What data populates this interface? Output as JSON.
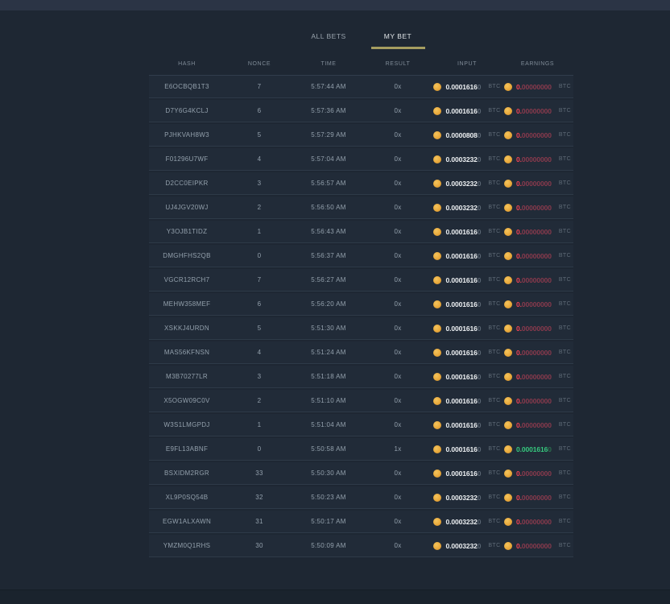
{
  "colors": {
    "accent_gold": "#a59d60",
    "win_green": "#36c97e",
    "lose_red": "#ef4256",
    "coin_gold": "#e9a93c"
  },
  "tabs": [
    {
      "label": "ALL BETS",
      "active": false
    },
    {
      "label": "MY BET",
      "active": true
    }
  ],
  "columns": [
    "HASH",
    "NONCE",
    "TIME",
    "RESULT",
    "INPUT",
    "EARNINGS"
  ],
  "currency": "BTC",
  "rows": [
    {
      "hash": "E6OCBQB1T3",
      "nonce": "7",
      "time": "5:57:44 AM",
      "result": "0x",
      "input_main": "0.0001616",
      "input_dim": "0",
      "earn_main": "0.",
      "earn_dim": "00000000",
      "outcome": "lose"
    },
    {
      "hash": "D7Y6G4KCLJ",
      "nonce": "6",
      "time": "5:57:36 AM",
      "result": "0x",
      "input_main": "0.0001616",
      "input_dim": "0",
      "earn_main": "0.",
      "earn_dim": "00000000",
      "outcome": "lose"
    },
    {
      "hash": "PJHKVAH8W3",
      "nonce": "5",
      "time": "5:57:29 AM",
      "result": "0x",
      "input_main": "0.0000808",
      "input_dim": "0",
      "earn_main": "0.",
      "earn_dim": "00000000",
      "outcome": "lose"
    },
    {
      "hash": "F01296U7WF",
      "nonce": "4",
      "time": "5:57:04 AM",
      "result": "0x",
      "input_main": "0.0003232",
      "input_dim": "0",
      "earn_main": "0.",
      "earn_dim": "00000000",
      "outcome": "lose"
    },
    {
      "hash": "D2CC0EIPKR",
      "nonce": "3",
      "time": "5:56:57 AM",
      "result": "0x",
      "input_main": "0.0003232",
      "input_dim": "0",
      "earn_main": "0.",
      "earn_dim": "00000000",
      "outcome": "lose"
    },
    {
      "hash": "UJ4JGV20WJ",
      "nonce": "2",
      "time": "5:56:50 AM",
      "result": "0x",
      "input_main": "0.0003232",
      "input_dim": "0",
      "earn_main": "0.",
      "earn_dim": "00000000",
      "outcome": "lose"
    },
    {
      "hash": "Y3OJB1TIDZ",
      "nonce": "1",
      "time": "5:56:43 AM",
      "result": "0x",
      "input_main": "0.0001616",
      "input_dim": "0",
      "earn_main": "0.",
      "earn_dim": "00000000",
      "outcome": "lose"
    },
    {
      "hash": "DMGHFHS2QB",
      "nonce": "0",
      "time": "5:56:37 AM",
      "result": "0x",
      "input_main": "0.0001616",
      "input_dim": "0",
      "earn_main": "0.",
      "earn_dim": "00000000",
      "outcome": "lose"
    },
    {
      "hash": "VGCR12RCH7",
      "nonce": "7",
      "time": "5:56:27 AM",
      "result": "0x",
      "input_main": "0.0001616",
      "input_dim": "0",
      "earn_main": "0.",
      "earn_dim": "00000000",
      "outcome": "lose"
    },
    {
      "hash": "MEHW358MEF",
      "nonce": "6",
      "time": "5:56:20 AM",
      "result": "0x",
      "input_main": "0.0001616",
      "input_dim": "0",
      "earn_main": "0.",
      "earn_dim": "00000000",
      "outcome": "lose"
    },
    {
      "hash": "XSKKJ4URDN",
      "nonce": "5",
      "time": "5:51:30 AM",
      "result": "0x",
      "input_main": "0.0001616",
      "input_dim": "0",
      "earn_main": "0.",
      "earn_dim": "00000000",
      "outcome": "lose"
    },
    {
      "hash": "MAS56KFNSN",
      "nonce": "4",
      "time": "5:51:24 AM",
      "result": "0x",
      "input_main": "0.0001616",
      "input_dim": "0",
      "earn_main": "0.",
      "earn_dim": "00000000",
      "outcome": "lose"
    },
    {
      "hash": "M3B70277LR",
      "nonce": "3",
      "time": "5:51:18 AM",
      "result": "0x",
      "input_main": "0.0001616",
      "input_dim": "0",
      "earn_main": "0.",
      "earn_dim": "00000000",
      "outcome": "lose"
    },
    {
      "hash": "X5OGW09C0V",
      "nonce": "2",
      "time": "5:51:10 AM",
      "result": "0x",
      "input_main": "0.0001616",
      "input_dim": "0",
      "earn_main": "0.",
      "earn_dim": "00000000",
      "outcome": "lose"
    },
    {
      "hash": "W3S1LMGPDJ",
      "nonce": "1",
      "time": "5:51:04 AM",
      "result": "0x",
      "input_main": "0.0001616",
      "input_dim": "0",
      "earn_main": "0.",
      "earn_dim": "00000000",
      "outcome": "lose"
    },
    {
      "hash": "E9FL13ABNF",
      "nonce": "0",
      "time": "5:50:58 AM",
      "result": "1x",
      "input_main": "0.0001616",
      "input_dim": "0",
      "earn_main": "0.0001616",
      "earn_dim": "0",
      "outcome": "win"
    },
    {
      "hash": "BSXIDM2RGR",
      "nonce": "33",
      "time": "5:50:30 AM",
      "result": "0x",
      "input_main": "0.0001616",
      "input_dim": "0",
      "earn_main": "0.",
      "earn_dim": "00000000",
      "outcome": "lose"
    },
    {
      "hash": "XL9P0SQ54B",
      "nonce": "32",
      "time": "5:50:23 AM",
      "result": "0x",
      "input_main": "0.0003232",
      "input_dim": "0",
      "earn_main": "0.",
      "earn_dim": "00000000",
      "outcome": "lose"
    },
    {
      "hash": "EGW1ALXAWN",
      "nonce": "31",
      "time": "5:50:17 AM",
      "result": "0x",
      "input_main": "0.0003232",
      "input_dim": "0",
      "earn_main": "0.",
      "earn_dim": "00000000",
      "outcome": "lose"
    },
    {
      "hash": "YMZM0Q1RHS",
      "nonce": "30",
      "time": "5:50:09 AM",
      "result": "0x",
      "input_main": "0.0003232",
      "input_dim": "0",
      "earn_main": "0.",
      "earn_dim": "00000000",
      "outcome": "lose"
    }
  ]
}
